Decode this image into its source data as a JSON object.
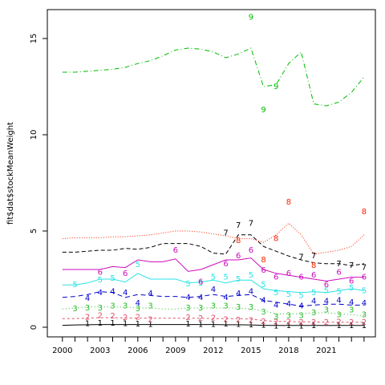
{
  "chart_data": {
    "type": "line",
    "title": "",
    "xlabel": "",
    "ylabel": "fit$dat$stockMeanWeight",
    "xlim": [
      1998.8,
      2024.9
    ],
    "ylim": [
      -0.5,
      16.5
    ],
    "x": [
      2000,
      2001,
      2002,
      2003,
      2004,
      2005,
      2006,
      2007,
      2008,
      2009,
      2010,
      2011,
      2012,
      2013,
      2014,
      2015,
      2016,
      2017,
      2018,
      2019,
      2020,
      2021,
      2022,
      2023,
      2024
    ],
    "x_ticks": [
      2000,
      2003,
      2006,
      2009,
      2012,
      2015,
      2018,
      2021
    ],
    "x_tick_labels": [
      "2000",
      "2003",
      "2006",
      "2009",
      "2012",
      "2015",
      "2018",
      "2021"
    ],
    "y_ticks": [
      0,
      5,
      10,
      15
    ],
    "y_tick_labels": [
      "0",
      "5",
      "10",
      "15"
    ],
    "grid": false,
    "legend": "none",
    "series": [
      {
        "label": "1",
        "color": "#000000",
        "dash": "",
        "fit": [
          0.1,
          0.12,
          0.13,
          0.14,
          0.14,
          0.14,
          0.14,
          0.14,
          0.14,
          0.14,
          0.14,
          0.14,
          0.14,
          0.13,
          0.13,
          0.12,
          0.1,
          0.09,
          0.09,
          0.09,
          0.09,
          0.09,
          0.09,
          0.09,
          0.09
        ],
        "obs": [
          null,
          null,
          0.18,
          0.2,
          0.2,
          0.18,
          0.16,
          0.14,
          null,
          null,
          0.17,
          0.15,
          0.14,
          0.16,
          0.14,
          0.12,
          0.1,
          0.07,
          0.08,
          0.07,
          0.08,
          null,
          0.08,
          0.08,
          0.09
        ]
      },
      {
        "label": "2",
        "color": "#df536b",
        "dash": "3,3",
        "fit": [
          0.45,
          0.45,
          0.47,
          0.5,
          0.5,
          0.48,
          0.48,
          0.47,
          0.47,
          0.47,
          0.47,
          0.47,
          0.45,
          0.45,
          0.45,
          0.42,
          0.35,
          0.3,
          0.3,
          0.28,
          0.28,
          0.26,
          0.26,
          0.26,
          0.26
        ],
        "obs": [
          null,
          null,
          0.52,
          0.6,
          0.58,
          0.5,
          0.52,
          0.4,
          null,
          null,
          0.5,
          0.45,
          0.48,
          0.4,
          0.38,
          0.35,
          0.3,
          0.28,
          0.28,
          0.25,
          0.25,
          0.25,
          0.28,
          0.25,
          0.25
        ]
      },
      {
        "label": "3",
        "color": "#22bb22",
        "dash": "1,3",
        "fit": [
          0.95,
          1.0,
          1.05,
          1.05,
          1.05,
          1.05,
          1.0,
          1.0,
          0.95,
          0.95,
          1.0,
          1.0,
          1.0,
          1.0,
          1.0,
          0.95,
          0.85,
          0.7,
          0.7,
          0.7,
          0.75,
          0.75,
          0.7,
          0.65,
          0.6
        ],
        "obs": [
          null,
          0.95,
          1.0,
          1.0,
          1.1,
          1.1,
          0.95,
          1.1,
          null,
          null,
          1.0,
          1.0,
          1.1,
          1.1,
          1.05,
          1.05,
          0.8,
          0.55,
          0.6,
          0.6,
          0.75,
          0.9,
          0.65,
          0.9,
          0.65
        ]
      },
      {
        "label": "4",
        "color": "#0000cc",
        "dash": "6,4",
        "fit": [
          1.55,
          1.6,
          1.7,
          1.85,
          1.8,
          1.55,
          1.7,
          1.65,
          1.6,
          1.6,
          1.55,
          1.6,
          1.7,
          1.6,
          1.65,
          1.7,
          1.4,
          1.3,
          1.2,
          1.1,
          1.15,
          1.2,
          1.2,
          1.15,
          1.15
        ],
        "obs": [
          null,
          null,
          1.5,
          1.8,
          1.85,
          1.8,
          1.25,
          1.75,
          null,
          null,
          1.55,
          1.55,
          1.95,
          1.55,
          1.75,
          1.85,
          1.4,
          1.15,
          1.2,
          1.1,
          1.35,
          1.35,
          1.4,
          1.3,
          1.25
        ]
      },
      {
        "label": "5",
        "color": "#28e2e5",
        "dash": "",
        "fit": [
          2.2,
          2.2,
          2.3,
          2.5,
          2.5,
          2.35,
          2.8,
          2.5,
          2.5,
          2.5,
          2.3,
          2.35,
          2.45,
          2.3,
          2.45,
          2.45,
          2.0,
          1.9,
          1.85,
          1.8,
          1.85,
          1.8,
          1.9,
          2.0,
          1.9
        ],
        "obs": [
          null,
          2.2,
          null,
          2.45,
          2.55,
          null,
          3.25,
          null,
          null,
          null,
          2.25,
          2.3,
          2.6,
          2.6,
          2.5,
          2.7,
          2.2,
          1.8,
          1.7,
          1.65,
          1.8,
          1.9,
          1.85,
          2.05,
          1.9
        ]
      },
      {
        "label": "6",
        "color": "#cd0bbc",
        "dash": "",
        "fit": [
          3.0,
          3.0,
          3.0,
          3.0,
          3.15,
          3.1,
          3.5,
          3.4,
          3.4,
          3.55,
          2.9,
          3.0,
          3.25,
          3.5,
          3.5,
          3.6,
          3.0,
          2.8,
          2.7,
          2.6,
          2.5,
          2.4,
          2.5,
          2.6,
          2.6
        ],
        "obs": [
          null,
          null,
          null,
          2.85,
          null,
          2.8,
          null,
          null,
          null,
          4.0,
          null,
          2.35,
          null,
          3.3,
          3.7,
          4.0,
          2.95,
          2.6,
          2.8,
          2.6,
          2.7,
          2.2,
          2.85,
          2.4,
          2.6
        ]
      },
      {
        "label": "7",
        "color": "#000000",
        "dash": "5,3",
        "fit": [
          3.9,
          3.9,
          3.95,
          4.0,
          4.0,
          4.1,
          4.05,
          4.15,
          4.35,
          4.35,
          4.35,
          4.2,
          3.85,
          3.8,
          4.8,
          4.8,
          4.2,
          3.95,
          3.7,
          3.5,
          3.35,
          3.3,
          3.3,
          3.2,
          3.3
        ],
        "obs": [
          null,
          null,
          null,
          null,
          null,
          null,
          null,
          null,
          null,
          null,
          null,
          null,
          null,
          4.9,
          5.3,
          5.4,
          null,
          null,
          null,
          3.65,
          3.7,
          null,
          3.3,
          3.2,
          3.1
        ]
      },
      {
        "label": "8",
        "color": "#ff2200",
        "dash": "1,2",
        "fit": [
          4.6,
          4.65,
          4.65,
          4.65,
          4.7,
          4.7,
          4.75,
          4.8,
          4.9,
          5.0,
          5.0,
          4.95,
          4.85,
          4.75,
          4.6,
          4.6,
          4.4,
          4.8,
          5.4,
          4.8,
          3.8,
          3.9,
          4.0,
          4.2,
          4.8
        ],
        "obs": [
          null,
          null,
          null,
          null,
          null,
          null,
          null,
          null,
          null,
          null,
          null,
          null,
          null,
          null,
          4.5,
          null,
          3.5,
          4.6,
          6.5,
          null,
          3.2,
          null,
          null,
          null,
          6.0
        ]
      },
      {
        "label": "9",
        "color": "#00bb00",
        "dash": "6,3,1,3",
        "fit": [
          13.25,
          13.25,
          13.3,
          13.35,
          13.4,
          13.5,
          13.7,
          13.85,
          14.1,
          14.4,
          14.5,
          14.45,
          14.3,
          14.0,
          14.2,
          14.5,
          12.5,
          12.6,
          13.7,
          14.3,
          11.6,
          11.5,
          11.7,
          12.2,
          13.0
        ],
        "obs": [
          null,
          null,
          null,
          null,
          null,
          null,
          null,
          null,
          null,
          null,
          null,
          null,
          null,
          null,
          null,
          16.1,
          11.3,
          12.5,
          null,
          null,
          null,
          null,
          null,
          null,
          null
        ]
      }
    ]
  }
}
